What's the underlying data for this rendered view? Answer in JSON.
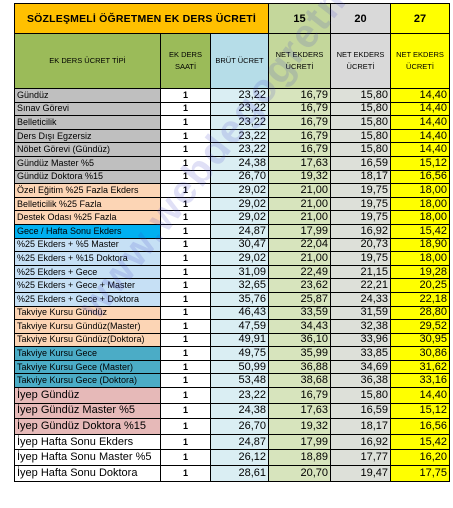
{
  "title": "SÖZLEŞMELİ ÖĞRETMEN EK DERS ÜCRETİ",
  "year_headers": [
    "15",
    "20",
    "27"
  ],
  "column_headers": {
    "type": "EK DERS ÜCRET TİPİ",
    "hours": "EK DERS SAATİ",
    "gross": "BRÜT ÜCRET",
    "net1": "NET EKDERS ÜCRETİ",
    "net2": "NET EKDERS ÜCRETİ",
    "net3": "NET EKDERS ÜCRETİ"
  },
  "watermark": "www.webdegogretmen.com",
  "rows": [
    {
      "label": "Gündüz",
      "hours": "1",
      "gross": "23,22",
      "n1": "16,79",
      "n2": "15,80",
      "n3": "14,40",
      "color": "gray"
    },
    {
      "label": "Sınav Görevi",
      "hours": "1",
      "gross": "23,22",
      "n1": "16,79",
      "n2": "15,80",
      "n3": "14,40",
      "color": "gray"
    },
    {
      "label": "Belleticilik",
      "hours": "1",
      "gross": "23,22",
      "n1": "16,79",
      "n2": "15,80",
      "n3": "14,40",
      "color": "gray"
    },
    {
      "label": "Ders Dışı Egzersiz",
      "hours": "1",
      "gross": "23,22",
      "n1": "16,79",
      "n2": "15,80",
      "n3": "14,40",
      "color": "gray"
    },
    {
      "label": "Nöbet Görevi (Gündüz)",
      "hours": "1",
      "gross": "23,22",
      "n1": "16,79",
      "n2": "15,80",
      "n3": "14,40",
      "color": "gray"
    },
    {
      "label": "Gündüz Master %5",
      "hours": "1",
      "gross": "24,38",
      "n1": "17,63",
      "n2": "16,59",
      "n3": "15,12",
      "color": "gray"
    },
    {
      "label": "Gündüz Doktora %15",
      "hours": "1",
      "gross": "26,70",
      "n1": "19,32",
      "n2": "18,17",
      "n3": "16,56",
      "color": "gray"
    },
    {
      "label": "Özel Eğitim %25 Fazla Ekders",
      "hours": "1",
      "gross": "29,02",
      "n1": "21,00",
      "n2": "19,75",
      "n3": "18,00",
      "color": "peach"
    },
    {
      "label": "Belleticilik %25 Fazla",
      "hours": "1",
      "gross": "29,02",
      "n1": "21,00",
      "n2": "19,75",
      "n3": "18,00",
      "color": "peach"
    },
    {
      "label": "Destek Odası %25 Fazla",
      "hours": "1",
      "gross": "29,02",
      "n1": "21,00",
      "n2": "19,75",
      "n3": "18,00",
      "color": "peach"
    },
    {
      "label": "Gece / Hafta Sonu Ekders",
      "hours": "1",
      "gross": "24,87",
      "n1": "17,99",
      "n2": "16,92",
      "n3": "15,42",
      "color": "blue"
    },
    {
      "label": "%25 Ekders + %5 Master",
      "hours": "1",
      "gross": "30,47",
      "n1": "22,04",
      "n2": "20,73",
      "n3": "18,90",
      "color": "lblue"
    },
    {
      "label": "%25 Ekders + %15 Doktora",
      "hours": "1",
      "gross": "29,02",
      "n1": "21,00",
      "n2": "19,75",
      "n3": "18,00",
      "color": "lblue"
    },
    {
      "label": "%25 Ekders + Gece",
      "hours": "1",
      "gross": "31,09",
      "n1": "22,49",
      "n2": "21,15",
      "n3": "19,28",
      "color": "lblue"
    },
    {
      "label": "%25 Ekders + Gece + Master",
      "hours": "1",
      "gross": "32,65",
      "n1": "23,62",
      "n2": "22,21",
      "n3": "20,25",
      "color": "lblue"
    },
    {
      "label": "%25 Ekders + Gece + Doktora",
      "hours": "1",
      "gross": "35,76",
      "n1": "25,87",
      "n2": "24,33",
      "n3": "22,18",
      "color": "lblue"
    },
    {
      "label": "Takviye Kursu Gündüz",
      "hours": "1",
      "gross": "46,43",
      "n1": "33,59",
      "n2": "31,59",
      "n3": "28,80",
      "color": "peach"
    },
    {
      "label": "Takviye Kursu Gündüz(Master)",
      "hours": "1",
      "gross": "47,59",
      "n1": "34,43",
      "n2": "32,38",
      "n3": "29,52",
      "color": "peach"
    },
    {
      "label": "Takviye Kursu Gündüz(Doktora)",
      "hours": "1",
      "gross": "49,91",
      "n1": "36,10",
      "n2": "33,96",
      "n3": "30,95",
      "color": "peach"
    },
    {
      "label": "Takviye Kursu Gece",
      "hours": "1",
      "gross": "49,75",
      "n1": "35,99",
      "n2": "33,85",
      "n3": "30,86",
      "color": "teal"
    },
    {
      "label": "Takviye Kursu Gece (Master)",
      "hours": "1",
      "gross": "50,99",
      "n1": "36,88",
      "n2": "34,69",
      "n3": "31,62",
      "color": "teal"
    },
    {
      "label": "Takviye Kursu Gece (Doktora)",
      "hours": "1",
      "gross": "53,48",
      "n1": "38,68",
      "n2": "36,38",
      "n3": "33,16",
      "color": "teal"
    },
    {
      "label": "İyep Gündüz",
      "hours": "1",
      "gross": "23,22",
      "n1": "16,79",
      "n2": "15,80",
      "n3": "14,40",
      "color": "pink",
      "big": true
    },
    {
      "label": "İyep Gündüz Master %5",
      "hours": "1",
      "gross": "24,38",
      "n1": "17,63",
      "n2": "16,59",
      "n3": "15,12",
      "color": "pink",
      "big": true
    },
    {
      "label": "İyep Gündüz Doktora %15",
      "hours": "1",
      "gross": "26,70",
      "n1": "19,32",
      "n2": "18,17",
      "n3": "16,56",
      "color": "pink",
      "big": true
    },
    {
      "label": "İyep Hafta Sonu Ekders",
      "hours": "1",
      "gross": "24,87",
      "n1": "17,99",
      "n2": "16,92",
      "n3": "15,42",
      "color": "white",
      "big": true
    },
    {
      "label": "İyep Hafta Sonu Master %5",
      "hours": "1",
      "gross": "26,12",
      "n1": "18,89",
      "n2": "17,77",
      "n3": "16,20",
      "color": "white",
      "big": true
    },
    {
      "label": "İyep Hafta Sonu Doktora",
      "hours": "1",
      "gross": "28,61",
      "n1": "20,70",
      "n2": "19,47",
      "n3": "17,75",
      "color": "white",
      "big": true
    }
  ]
}
